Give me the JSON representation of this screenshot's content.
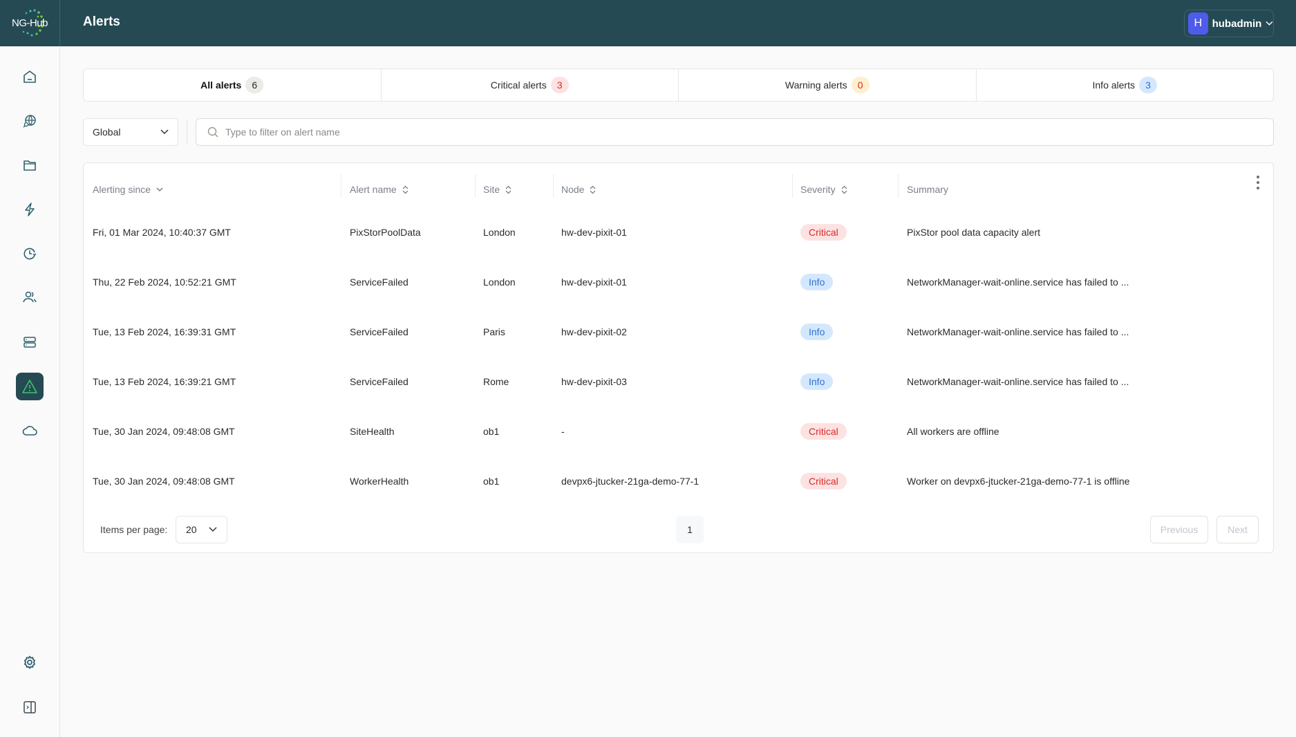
{
  "app": {
    "logo_text": "NG-Hub",
    "title": "Alerts"
  },
  "user": {
    "initial": "H",
    "name": "hubadmin"
  },
  "sidebar": {
    "items": [
      {
        "icon": "home-icon"
      },
      {
        "icon": "globe-search-icon"
      },
      {
        "icon": "folder-icon"
      },
      {
        "icon": "lightning-icon"
      },
      {
        "icon": "clock-history-icon"
      },
      {
        "icon": "users-icon"
      },
      {
        "icon": "server-icon"
      },
      {
        "icon": "alert-triangle-icon",
        "active": true
      },
      {
        "icon": "cloud-icon"
      }
    ],
    "bottom": [
      {
        "icon": "gear-icon"
      },
      {
        "icon": "sidebar-expand-icon"
      }
    ]
  },
  "tabs": [
    {
      "label": "All alerts",
      "count": "6",
      "bg": "#ecebe7",
      "color": "#2b2b2b",
      "active": true
    },
    {
      "label": "Critical alerts",
      "count": "3",
      "bg": "#fde2e2",
      "color": "#d42a2a"
    },
    {
      "label": "Warning alerts",
      "count": "0",
      "bg": "#fdf0cc",
      "color": "#d42a2a"
    },
    {
      "label": "Info alerts",
      "count": "3",
      "bg": "#d4e8fd",
      "color": "#2c6fd6"
    }
  ],
  "filter": {
    "scope": "Global",
    "search_placeholder": "Type to filter on alert name",
    "search_value": ""
  },
  "table": {
    "columns": [
      "Alerting since",
      "Alert name",
      "Site",
      "Node",
      "Severity",
      "Summary"
    ],
    "rows": [
      {
        "since": "Fri, 01 Mar 2024, 10:40:37 GMT",
        "name": "PixStorPoolData",
        "site": "London",
        "node": "hw-dev-pixit-01",
        "severity": "Critical",
        "summary": "PixStor pool data capacity alert"
      },
      {
        "since": "Thu, 22 Feb 2024, 10:52:21 GMT",
        "name": "ServiceFailed",
        "site": "London",
        "node": "hw-dev-pixit-01",
        "severity": "Info",
        "summary": "NetworkManager-wait-online.service has failed to ..."
      },
      {
        "since": "Tue, 13 Feb 2024, 16:39:31 GMT",
        "name": "ServiceFailed",
        "site": "Paris",
        "node": "hw-dev-pixit-02",
        "severity": "Info",
        "summary": "NetworkManager-wait-online.service has failed to ..."
      },
      {
        "since": "Tue, 13 Feb 2024, 16:39:21 GMT",
        "name": "ServiceFailed",
        "site": "Rome",
        "node": "hw-dev-pixit-03",
        "severity": "Info",
        "summary": "NetworkManager-wait-online.service has failed to ..."
      },
      {
        "since": "Tue, 30 Jan 2024, 09:48:08 GMT",
        "name": "SiteHealth",
        "site": "ob1",
        "node": "-",
        "severity": "Critical",
        "summary": "All workers are offline"
      },
      {
        "since": "Tue, 30 Jan 2024, 09:48:08 GMT",
        "name": "WorkerHealth",
        "site": "ob1",
        "node": "devpx6-jtucker-21ga-demo-77-1",
        "severity": "Critical",
        "summary": "Worker on devpx6-jtucker-21ga-demo-77-1 is offline"
      }
    ]
  },
  "pagination": {
    "items_per_page_label": "Items per page:",
    "items_per_page": "20",
    "current_page": "1",
    "previous": "Previous",
    "next": "Next"
  }
}
